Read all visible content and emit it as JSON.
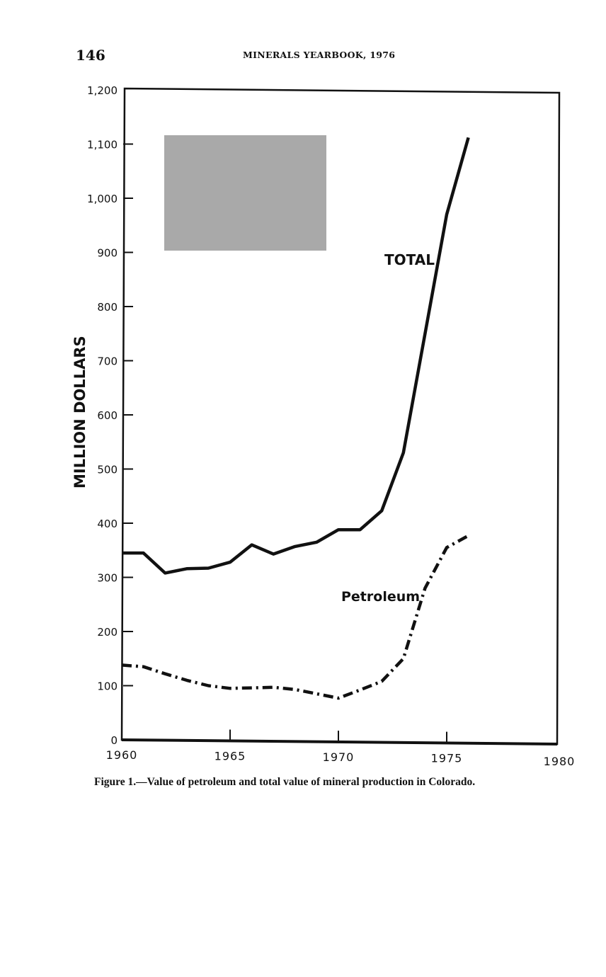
{
  "page": {
    "page_number": "146",
    "running_head": "MINERALS YEARBOOK, 1976",
    "caption": "Figure 1.—Value of petroleum and total value of mineral production in Colorado."
  },
  "chart_data": {
    "type": "line",
    "title": "Figure 1.—Value of petroleum and total value of mineral production in Colorado.",
    "xlabel": "",
    "ylabel": "MILLION DOLLARS",
    "xlim": [
      1960,
      1980
    ],
    "ylim": [
      0,
      1200
    ],
    "grid": false,
    "x_ticks": [
      "1960",
      "1965",
      "1970",
      "1975",
      "1980"
    ],
    "y_ticks": [
      "0",
      "100",
      "200",
      "300",
      "400",
      "500",
      "600",
      "700",
      "800",
      "900",
      "1,000",
      "1,100",
      "1,200"
    ],
    "x": [
      1960,
      1961,
      1962,
      1963,
      1964,
      1965,
      1966,
      1967,
      1968,
      1969,
      1970,
      1971,
      1972,
      1973,
      1974,
      1975,
      1976
    ],
    "series": [
      {
        "name": "TOTAL",
        "style": "solid",
        "color": "#111111",
        "values": [
          345,
          345,
          308,
          316,
          317,
          328,
          360,
          343,
          357,
          365,
          388,
          388,
          423,
          530,
          750,
          970,
          1112
        ]
      },
      {
        "name": "Petroleum",
        "style": "dash-dot",
        "color": "#111111",
        "values": [
          138,
          135,
          122,
          110,
          100,
          95,
          96,
          97,
          93,
          85,
          77,
          92,
          108,
          150,
          280,
          355,
          377
        ]
      }
    ],
    "annotations": [
      "TOTAL",
      "Petroleum"
    ],
    "legend": "inline labels"
  }
}
